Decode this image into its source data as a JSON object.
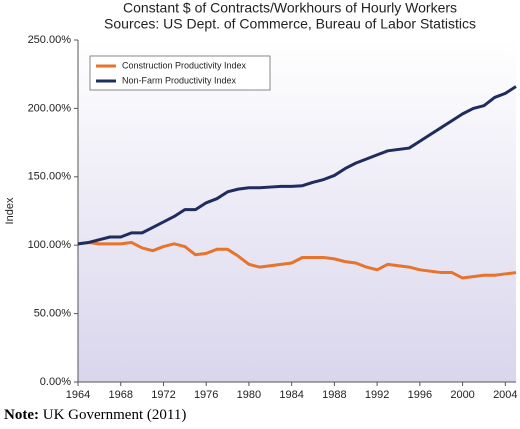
{
  "chart_data": {
    "type": "line",
    "title": "Constant $ of Contracts/Workhours of Hourly Workers",
    "subtitle": "Sources: US Dept. of Commerce, Bureau of Labor Statistics",
    "y_label": "Index",
    "x": [
      1964,
      1965,
      1966,
      1967,
      1968,
      1969,
      1970,
      1971,
      1972,
      1973,
      1974,
      1975,
      1976,
      1977,
      1978,
      1979,
      1980,
      1981,
      1982,
      1983,
      1984,
      1985,
      1986,
      1987,
      1988,
      1989,
      1990,
      1991,
      1992,
      1993,
      1994,
      1995,
      1996,
      1997,
      1998,
      1999,
      2000,
      2001,
      2002,
      2003,
      2004,
      2005
    ],
    "series": [
      {
        "name": "Construction Productivity Index",
        "color": "#e8732a",
        "values": [
          101,
          102,
          101,
          101,
          101,
          102,
          98,
          96,
          99,
          101,
          99,
          93,
          94,
          97,
          97,
          92,
          86,
          84,
          85,
          86,
          87,
          91,
          91,
          91,
          90,
          88,
          87,
          84,
          82,
          86,
          85,
          84,
          82,
          81,
          80,
          80,
          76,
          77,
          78,
          78,
          79,
          80
        ]
      },
      {
        "name": "Non-Farm Productivity Index",
        "color": "#1f2d5e",
        "values": [
          101,
          102,
          104,
          106,
          106,
          109,
          109,
          113,
          117,
          121,
          126,
          126,
          131,
          134,
          139,
          141,
          142,
          142,
          142.5,
          143,
          143,
          143.5,
          146,
          148,
          151,
          156,
          160,
          163,
          166,
          169,
          170,
          171,
          176,
          181,
          186,
          191,
          196,
          200,
          202,
          208,
          211,
          216
        ]
      }
    ],
    "xlim": [
      1964,
      2005
    ],
    "xticks": [
      1964,
      1968,
      1972,
      1976,
      1980,
      1984,
      1988,
      1992,
      1996,
      2000,
      2004
    ],
    "ylim": [
      0,
      250
    ],
    "yticks": [
      {
        "value": 0,
        "label": "0.00%"
      },
      {
        "value": 50,
        "label": "50.00%"
      },
      {
        "value": 100,
        "label": "100.00%"
      },
      {
        "value": 150,
        "label": "150.00%"
      },
      {
        "value": 200,
        "label": "200.00%"
      },
      {
        "value": 250,
        "label": "250.00%"
      }
    ],
    "legend": "upper left"
  },
  "note": {
    "label": "Note:",
    "text": "UK Government (2011)"
  }
}
